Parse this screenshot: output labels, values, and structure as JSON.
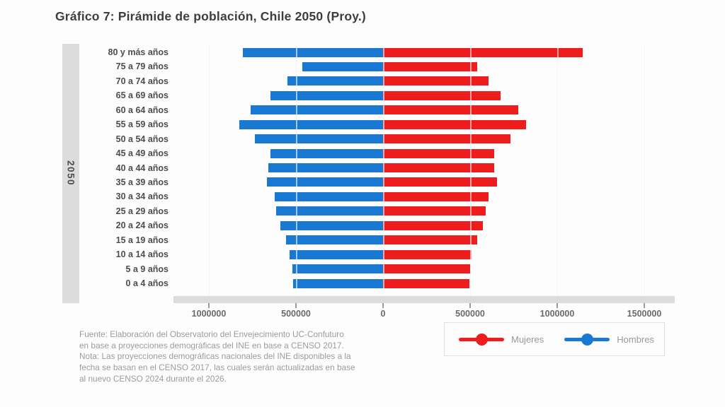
{
  "title": "Gráfico 7: Pirámide de población, Chile 2050 (Proy.)",
  "period_label": "2050",
  "colors": {
    "mujeres": "#ee1c1c",
    "hombres": "#1878d2",
    "axis_band": "#dcdcdc",
    "gridline": "#e4e4e4",
    "title_text": "#3e3e3e",
    "muted_text": "#9b9b9b"
  },
  "legend": {
    "mujeres_label": "Mujeres",
    "hombres_label": "Hombres"
  },
  "footer_note": "Fuente: Elaboración del Observatorio del Envejecimiento UC-Confuturo\nen base a proyecciones demográficas del INE en base a CENSO 2017.\nNota: Las proyecciones demográficas nacionales del INE disponibles a la\nfecha se basan en el CENSO 2017, las cuales serán actualizadas en base\nal nuevo CENSO 2024 durante el 2026.",
  "chart_data": {
    "type": "bar",
    "subtype": "population-pyramid",
    "orientation": "horizontal",
    "title": "Gráfico 7: Pirámide de población, Chile 2050 (Proy.)",
    "group_label": "2050",
    "categories": [
      "80 y más años",
      "75 a 79 años",
      "70 a 74 años",
      "65 a 69 años",
      "60 a 64 años",
      "55 a 59 años",
      "50 a 54 años",
      "45 a 49 años",
      "40 a 44 años",
      "35 a 39 años",
      "30 a 34 años",
      "25 a 29 años",
      "20 a 24 años",
      "15 a 19 años",
      "10 a 14 años",
      "5 a 9 años",
      "0 a 4 años"
    ],
    "series": [
      {
        "name": "Hombres",
        "side": "left",
        "color": "#1878d2",
        "values": [
          805000,
          465000,
          550000,
          645000,
          760000,
          825000,
          735000,
          645000,
          660000,
          665000,
          620000,
          615000,
          590000,
          555000,
          535000,
          520000,
          515000
        ]
      },
      {
        "name": "Mujeres",
        "side": "right",
        "color": "#ee1c1c",
        "values": [
          1145000,
          540000,
          605000,
          675000,
          775000,
          820000,
          730000,
          640000,
          640000,
          655000,
          605000,
          590000,
          575000,
          540000,
          510000,
          500000,
          495000
        ]
      }
    ],
    "x_tick_labels": [
      "1000000",
      "500000",
      "0",
      "500000",
      "1000000",
      "1500000"
    ],
    "x_tick_values": [
      -1000000,
      -500000,
      0,
      500000,
      1000000,
      1500000
    ],
    "xlim": [
      -1185000,
      1685000
    ],
    "grid": true,
    "legend_position": "bottom-right"
  }
}
